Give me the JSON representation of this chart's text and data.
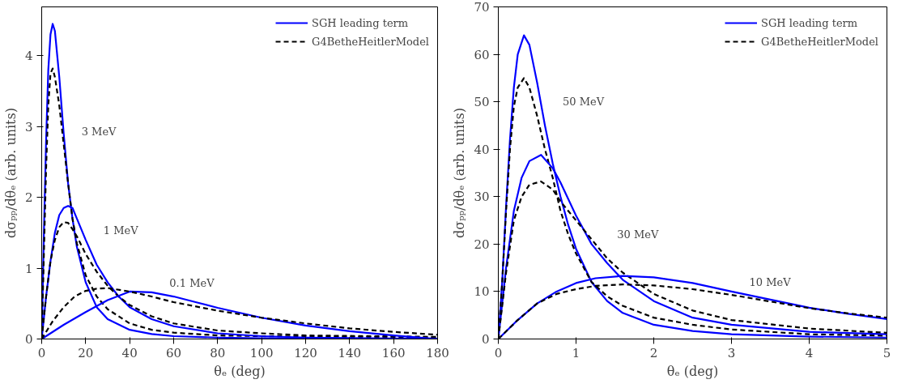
{
  "chart_data": [
    {
      "type": "line",
      "xlabel": "θₑ (deg)",
      "ylabel": "dσₚₚ/dθₑ (arb. units)",
      "xlim": [
        0,
        180
      ],
      "ylim": [
        0,
        4.69
      ],
      "xticks": [
        0,
        20,
        40,
        60,
        80,
        100,
        120,
        140,
        160,
        180
      ],
      "yticks": [
        0,
        1,
        2,
        3,
        4
      ],
      "grid": false,
      "legend": "top right",
      "annotations": [
        {
          "text": "3 MeV",
          "x": 10,
          "y": 2.8
        },
        {
          "text": "1 MeV",
          "x": 20,
          "y": 1.4
        },
        {
          "text": "0.1 MeV",
          "x": 50,
          "y": 0.66
        }
      ],
      "series": [
        {
          "name": "SGH leading term",
          "color": "#0000ff",
          "line_style": "solid",
          "x": [
            0,
            1,
            2,
            3,
            4,
            5,
            6,
            8,
            10,
            12,
            14,
            16,
            20,
            25,
            30,
            40,
            50,
            60,
            80,
            100,
            140,
            180
          ],
          "values": [
            0,
            1.5,
            2.8,
            3.8,
            4.3,
            4.45,
            4.35,
            3.7,
            2.9,
            2.2,
            1.7,
            1.3,
            0.8,
            0.45,
            0.28,
            0.13,
            0.07,
            0.04,
            0.02,
            0.01,
            0.005,
            0
          ]
        },
        {
          "name": "G4BetheHeitlerModel",
          "color": "#000000",
          "line_style": "dashed",
          "x": [
            0,
            1,
            2,
            3,
            4,
            5,
            6,
            8,
            10,
            12,
            14,
            16,
            20,
            25,
            30,
            40,
            50,
            60,
            80,
            100,
            140,
            180
          ],
          "values": [
            0,
            1.2,
            2.4,
            3.3,
            3.75,
            3.82,
            3.7,
            3.3,
            2.75,
            2.2,
            1.7,
            1.35,
            0.9,
            0.6,
            0.42,
            0.22,
            0.13,
            0.09,
            0.05,
            0.04,
            0.03,
            0.02
          ]
        },
        {
          "color": "#0000ff",
          "line_style": "solid",
          "x": [
            0,
            2,
            4,
            6,
            8,
            10,
            12,
            14,
            16,
            20,
            25,
            30,
            35,
            40,
            50,
            60,
            80,
            100,
            120,
            150,
            180
          ],
          "values": [
            0,
            0.6,
            1.1,
            1.5,
            1.75,
            1.85,
            1.88,
            1.85,
            1.7,
            1.4,
            1.05,
            0.8,
            0.6,
            0.45,
            0.28,
            0.18,
            0.08,
            0.04,
            0.02,
            0.01,
            0
          ]
        },
        {
          "color": "#000000",
          "line_style": "dashed",
          "x": [
            0,
            2,
            4,
            6,
            8,
            10,
            12,
            14,
            16,
            20,
            25,
            30,
            35,
            40,
            50,
            60,
            80,
            100,
            120,
            150,
            180
          ],
          "values": [
            0,
            0.6,
            1.1,
            1.4,
            1.58,
            1.65,
            1.64,
            1.55,
            1.45,
            1.2,
            0.95,
            0.75,
            0.6,
            0.48,
            0.32,
            0.22,
            0.12,
            0.08,
            0.05,
            0.04,
            0.03
          ]
        },
        {
          "color": "#0000ff",
          "line_style": "solid",
          "x": [
            0,
            5,
            10,
            20,
            30,
            40,
            50,
            60,
            70,
            80,
            100,
            120,
            140,
            160,
            180
          ],
          "values": [
            0,
            0.1,
            0.2,
            0.38,
            0.55,
            0.67,
            0.66,
            0.6,
            0.52,
            0.44,
            0.3,
            0.19,
            0.11,
            0.05,
            0
          ]
        },
        {
          "color": "#000000",
          "line_style": "dashed",
          "x": [
            0,
            3,
            5,
            10,
            15,
            20,
            25,
            30,
            40,
            50,
            60,
            80,
            100,
            120,
            140,
            160,
            180
          ],
          "values": [
            0,
            0.15,
            0.25,
            0.45,
            0.6,
            0.68,
            0.71,
            0.72,
            0.67,
            0.6,
            0.52,
            0.4,
            0.3,
            0.22,
            0.15,
            0.1,
            0.06
          ]
        }
      ]
    },
    {
      "type": "line",
      "xlabel": "θₑ (deg)",
      "ylabel": "dσₚₚ/dθₑ (arb. units)",
      "xlim": [
        0,
        5
      ],
      "ylim": [
        0,
        70
      ],
      "xticks": [
        0,
        1,
        2,
        3,
        4,
        5
      ],
      "yticks": [
        0,
        10,
        20,
        30,
        40,
        50,
        60,
        70
      ],
      "grid": false,
      "legend": "top right",
      "annotations": [
        {
          "text": "50 MeV",
          "x": 0.6,
          "y": 48
        },
        {
          "text": "30 MeV",
          "x": 1.3,
          "y": 20
        },
        {
          "text": "10 MeV",
          "x": 3,
          "y": 10
        }
      ],
      "series": [
        {
          "name": "SGH leading term",
          "color": "#0000ff",
          "line_style": "solid",
          "x": [
            0,
            0.05,
            0.1,
            0.15,
            0.2,
            0.25,
            0.33,
            0.4,
            0.5,
            0.6,
            0.7,
            0.8,
            0.9,
            1.0,
            1.2,
            1.4,
            1.6,
            2,
            2.5,
            3,
            4,
            5
          ],
          "values": [
            0,
            12,
            28,
            42,
            53,
            60,
            64,
            62,
            54,
            45,
            37,
            30,
            24,
            19,
            12,
            8,
            5.5,
            3,
            1.7,
            1,
            0.5,
            0.3
          ]
        },
        {
          "name": "G4BetheHeitlerModel",
          "color": "#000000",
          "line_style": "dashed",
          "x": [
            0,
            0.05,
            0.1,
            0.15,
            0.2,
            0.25,
            0.33,
            0.4,
            0.5,
            0.6,
            0.7,
            0.8,
            0.9,
            1.0,
            1.2,
            1.4,
            1.6,
            2,
            2.5,
            3,
            4,
            5
          ],
          "values": [
            0,
            12,
            27,
            40,
            49,
            53,
            55,
            53,
            47,
            40,
            34,
            27,
            22,
            18,
            12,
            9,
            7,
            4.5,
            3,
            2,
            1,
            0.7
          ]
        },
        {
          "color": "#0000ff",
          "line_style": "solid",
          "x": [
            0,
            0.1,
            0.2,
            0.3,
            0.4,
            0.55,
            0.7,
            0.8,
            1.0,
            1.2,
            1.4,
            1.6,
            2,
            2.5,
            3,
            4,
            5
          ],
          "values": [
            0,
            15,
            27,
            34,
            37.5,
            38.8,
            36,
            33,
            26,
            20,
            16,
            12.5,
            8,
            4.5,
            3,
            1.5,
            1
          ]
        },
        {
          "color": "#000000",
          "line_style": "dashed",
          "x": [
            0,
            0.1,
            0.2,
            0.3,
            0.4,
            0.55,
            0.7,
            0.8,
            1.0,
            1.2,
            1.4,
            1.6,
            2,
            2.5,
            3,
            4,
            5
          ],
          "values": [
            0,
            14,
            25,
            30,
            32.5,
            33.2,
            31.5,
            29,
            25,
            21,
            17,
            14,
            9.5,
            6,
            4,
            2.2,
            1.3
          ]
        },
        {
          "color": "#0000ff",
          "line_style": "solid",
          "x": [
            0,
            0.25,
            0.5,
            0.75,
            1.0,
            1.25,
            1.6,
            2.0,
            2.5,
            3,
            3.5,
            4,
            4.5,
            5
          ],
          "values": [
            0,
            4,
            7.5,
            10,
            11.8,
            12.8,
            13.3,
            13,
            11.8,
            10,
            8.3,
            6.6,
            5.3,
            4.2
          ]
        },
        {
          "color": "#000000",
          "line_style": "dashed",
          "x": [
            0,
            0.25,
            0.5,
            0.75,
            1.0,
            1.25,
            1.6,
            2.0,
            2.5,
            3,
            3.5,
            4,
            4.5,
            5
          ],
          "values": [
            0,
            4,
            7.5,
            9.5,
            10.5,
            11.2,
            11.5,
            11.3,
            10.5,
            9.3,
            7.9,
            6.5,
            5.4,
            4.5
          ]
        }
      ]
    }
  ]
}
